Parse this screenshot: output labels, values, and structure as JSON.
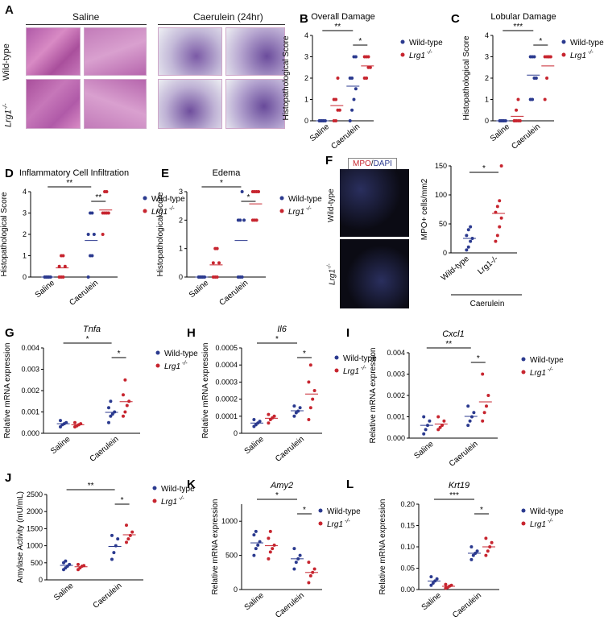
{
  "colors": {
    "wt": "#2b3a8f",
    "lrg": "#c7252f",
    "mpo": "#c7252f",
    "dapi": "#2b3a8f"
  },
  "panel_a": {
    "letter": "A",
    "headers": [
      "Saline",
      "Caerulein (24hr)"
    ],
    "rows": [
      "Wild-type",
      "Lrg1"
    ],
    "row2_sup": "-/-"
  },
  "panel_f": {
    "letter": "F",
    "stain_mpo": "MPO",
    "stain_sep": "/",
    "stain_dapi": "DAPI",
    "img_rows": [
      "Wild-type",
      "Lrg1"
    ],
    "img_sup": "-/-"
  },
  "legend": {
    "wt": "Wild-type",
    "lrg": "Lrg1",
    "lrg_sup": "-/-"
  },
  "chart_data": [
    {
      "id": "B",
      "type": "scatter",
      "title": "Overall Damage",
      "ylabel": "Histopathological Score",
      "ylim": [
        0,
        4
      ],
      "yticks": [
        "0",
        "1",
        "2",
        "3",
        "4"
      ],
      "categories": [
        "Saline",
        "Caerulein"
      ],
      "sig": [
        {
          "text": "**"
        },
        {
          "text": "*"
        }
      ],
      "series": [
        {
          "name": "Wild-type",
          "groups": [
            [
              0,
              0,
              0,
              0,
              0,
              0,
              0
            ],
            [
              0,
              0.5,
              1,
              1.5,
              2,
              2,
              3,
              3
            ]
          ]
        },
        {
          "name": "Lrg1-/-",
          "groups": [
            [
              0,
              0,
              0.5,
              0.5,
              1,
              1,
              2
            ],
            [
              2,
              2,
              2.5,
              2.5,
              3,
              3,
              3
            ]
          ]
        }
      ]
    },
    {
      "id": "C",
      "type": "scatter",
      "title": "Lobular Damage",
      "ylabel": "Histopathological Score",
      "ylim": [
        0,
        4
      ],
      "yticks": [
        "0",
        "1",
        "2",
        "3",
        "4"
      ],
      "categories": [
        "Saline",
        "Caerulein"
      ],
      "sig": [
        {
          "text": "***"
        },
        {
          "text": "*"
        }
      ],
      "series": [
        {
          "name": "Wild-type",
          "groups": [
            [
              0,
              0,
              0,
              0,
              0,
              0,
              0
            ],
            [
              1,
              1,
              2,
              2,
              3,
              3,
              3
            ]
          ]
        },
        {
          "name": "Lrg1-/-",
          "groups": [
            [
              0,
              0,
              0,
              0,
              0,
              0.5,
              1
            ],
            [
              1,
              2,
              3,
              3,
              3,
              3,
              3
            ]
          ]
        }
      ]
    },
    {
      "id": "D",
      "type": "scatter",
      "title": "Inflammatory Cell Infiltration",
      "ylabel": "Histopathological Score",
      "ylim": [
        0,
        4
      ],
      "yticks": [
        "0",
        "1",
        "2",
        "3",
        "4"
      ],
      "categories": [
        "Saline",
        "Caerulein"
      ],
      "sig": [
        {
          "text": "**"
        },
        {
          "text": "**"
        }
      ],
      "series": [
        {
          "name": "Wild-type",
          "groups": [
            [
              0,
              0,
              0,
              0,
              0,
              0,
              0
            ],
            [
              0,
              1,
              1,
              2,
              2,
              3,
              3
            ]
          ]
        },
        {
          "name": "Lrg1-/-",
          "groups": [
            [
              0,
              0,
              0,
              0.5,
              0.5,
              1,
              1
            ],
            [
              2,
              3,
              3,
              3,
              3,
              4,
              4
            ]
          ]
        }
      ]
    },
    {
      "id": "E",
      "type": "scatter",
      "title": "Edema",
      "ylabel": "Histopathological Score",
      "ylim": [
        0,
        3
      ],
      "yticks": [
        "0",
        "1",
        "2",
        "3"
      ],
      "categories": [
        "Saline",
        "Caerulein"
      ],
      "sig": [
        {
          "text": "*"
        },
        {
          "text": "*"
        }
      ],
      "series": [
        {
          "name": "Wild-type",
          "groups": [
            [
              0,
              0,
              0,
              0,
              0,
              0,
              0
            ],
            [
              0,
              0,
              0,
              2,
              2,
              2,
              3
            ]
          ]
        },
        {
          "name": "Lrg1-/-",
          "groups": [
            [
              0,
              0,
              0,
              0.5,
              0.5,
              1,
              1
            ],
            [
              2,
              2,
              2,
              3,
              3,
              3,
              3
            ]
          ]
        }
      ]
    },
    {
      "id": "F",
      "type": "scatter",
      "title": "",
      "ylabel": "MPO+ cells/mm2",
      "ylim": [
        0,
        150
      ],
      "yticks": [
        "0",
        "50",
        "100",
        "150"
      ],
      "categories": [
        "Wild-type",
        "Lrg1-/-"
      ],
      "group_label": "Caerulein",
      "sig": [
        {
          "text": "*"
        }
      ],
      "series": [
        {
          "name": "Wild-type",
          "groups": [
            [
              5,
              10,
              20,
              25,
              30,
              40,
              45
            ]
          ]
        },
        {
          "name": "Lrg1-/-",
          "groups": [
            [
              20,
              30,
              45,
              60,
              70,
              80,
              90,
              150
            ]
          ]
        }
      ]
    },
    {
      "id": "G",
      "type": "scatter",
      "title": "Tnfa",
      "ylabel": "Relative mRNA expression",
      "ylim": [
        0,
        0.004
      ],
      "yticks": [
        "0.000",
        "0.001",
        "0.002",
        "0.003",
        "0.004"
      ],
      "categories": [
        "Saline",
        "Caerulein"
      ],
      "sig": [
        {
          "text": "*"
        },
        {
          "text": "*"
        }
      ],
      "series": [
        {
          "name": "Wild-type",
          "groups": [
            [
              0.0003,
              0.0004,
              0.00045,
              0.0005,
              0.0006
            ],
            [
              0.0005,
              0.0008,
              0.0009,
              0.001,
              0.0012,
              0.0015
            ]
          ]
        },
        {
          "name": "Lrg1-/-",
          "groups": [
            [
              0.0003,
              0.00035,
              0.0004,
              0.00045,
              0.0005
            ],
            [
              0.0008,
              0.001,
              0.0013,
              0.0015,
              0.0018,
              0.0025
            ]
          ]
        }
      ]
    },
    {
      "id": "H",
      "type": "scatter",
      "title": "Il6",
      "ylabel": "Relative mRNA expression",
      "ylim": [
        0,
        0.0005
      ],
      "yticks": [
        "0",
        "0.0001",
        "0.0002",
        "0.0003",
        "0.0004",
        "0.0005"
      ],
      "categories": [
        "Saline",
        "Caerulein"
      ],
      "sig": [
        {
          "text": "*"
        },
        {
          "text": "*"
        }
      ],
      "series": [
        {
          "name": "Wild-type",
          "groups": [
            [
              4e-05,
              5e-05,
              6e-05,
              7e-05,
              8e-05
            ],
            [
              0.0001,
              0.00012,
              0.00013,
              0.00015,
              0.00016
            ]
          ]
        },
        {
          "name": "Lrg1-/-",
          "groups": [
            [
              6e-05,
              8e-05,
              9e-05,
              0.0001,
              0.00011
            ],
            [
              8e-05,
              0.00015,
              0.0002,
              0.00025,
              0.0003,
              0.0004
            ]
          ]
        }
      ]
    },
    {
      "id": "I",
      "type": "scatter",
      "title": "Cxcl1",
      "ylabel": "Relative mRNA expression",
      "ylim": [
        0,
        0.004
      ],
      "yticks": [
        "0.000",
        "0.001",
        "0.002",
        "0.003",
        "0.004"
      ],
      "categories": [
        "Saline",
        "Caerulein"
      ],
      "sig": [
        {
          "text": "**"
        },
        {
          "text": "*"
        }
      ],
      "series": [
        {
          "name": "Wild-type",
          "groups": [
            [
              0.0002,
              0.0004,
              0.0006,
              0.0008,
              0.001
            ],
            [
              0.0006,
              0.0008,
              0.001,
              0.0012,
              0.0015
            ]
          ]
        },
        {
          "name": "Lrg1-/-",
          "groups": [
            [
              0.0004,
              0.0005,
              0.0006,
              0.0008,
              0.001
            ],
            [
              0.0008,
              0.0012,
              0.0015,
              0.002,
              0.003
            ]
          ]
        }
      ]
    },
    {
      "id": "J",
      "type": "scatter",
      "title": "",
      "ylabel": "Amylase Activity (mU/mL)",
      "ylim": [
        0,
        2500
      ],
      "yticks": [
        "0",
        "500",
        "1000",
        "1500",
        "2000",
        "2500"
      ],
      "categories": [
        "Saline",
        "Caerulein"
      ],
      "sig": [
        {
          "text": "**"
        },
        {
          "text": "*"
        }
      ],
      "series": [
        {
          "name": "Wild-type",
          "groups": [
            [
              300,
              350,
              400,
              450,
              500,
              550
            ],
            [
              600,
              800,
              1000,
              1200,
              1300
            ]
          ]
        },
        {
          "name": "Lrg1-/-",
          "groups": [
            [
              300,
              350,
              400,
              420,
              450
            ],
            [
              1100,
              1200,
              1300,
              1400,
              1600
            ]
          ]
        }
      ]
    },
    {
      "id": "K",
      "type": "scatter",
      "title": "Amy2",
      "ylabel": "Relative mRNA expression",
      "ylim": [
        0,
        1250
      ],
      "yticks": [
        "0",
        "500",
        "1000"
      ],
      "categories": [
        "Saline",
        "Caerulein"
      ],
      "sig": [
        {
          "text": "*"
        },
        {
          "text": "*"
        }
      ],
      "series": [
        {
          "name": "Wild-type",
          "groups": [
            [
              500,
              600,
              650,
              700,
              800,
              850
            ],
            [
              300,
              400,
              450,
              500,
              600
            ]
          ]
        },
        {
          "name": "Lrg1-/-",
          "groups": [
            [
              450,
              550,
              600,
              650,
              750,
              850
            ],
            [
              100,
              200,
              250,
              300,
              400
            ]
          ]
        }
      ]
    },
    {
      "id": "L",
      "type": "scatter",
      "title": "Krt19",
      "ylabel": "Relative mRNA expression",
      "ylim": [
        0,
        0.2
      ],
      "yticks": [
        "0.00",
        "0.05",
        "0.10",
        "0.15",
        "0.20"
      ],
      "categories": [
        "Saline",
        "Caerulein"
      ],
      "sig": [
        {
          "text": "***"
        },
        {
          "text": "*"
        }
      ],
      "series": [
        {
          "name": "Wild-type",
          "groups": [
            [
              0.01,
              0.015,
              0.02,
              0.025,
              0.03
            ],
            [
              0.07,
              0.08,
              0.085,
              0.09,
              0.1
            ]
          ]
        },
        {
          "name": "Lrg1-/-",
          "groups": [
            [
              0.003,
              0.005,
              0.008,
              0.01,
              0.012
            ],
            [
              0.08,
              0.09,
              0.1,
              0.11,
              0.12
            ]
          ]
        }
      ]
    }
  ]
}
